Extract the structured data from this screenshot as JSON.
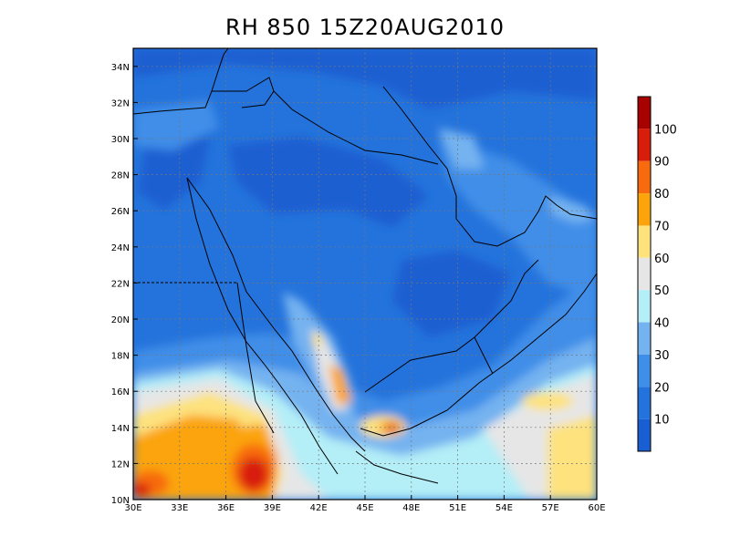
{
  "title": "RH 850 15Z20AUG2010",
  "map": {
    "lon_range": [
      30,
      60
    ],
    "lat_range": [
      10,
      35
    ],
    "lon_ticks": [
      "30E",
      "33E",
      "36E",
      "39E",
      "42E",
      "45E",
      "48E",
      "51E",
      "54E",
      "57E",
      "60E"
    ],
    "lat_ticks": [
      "10N",
      "12N",
      "14N",
      "16N",
      "18N",
      "20N",
      "22N",
      "24N",
      "26N",
      "28N",
      "30N",
      "32N",
      "34N"
    ],
    "gridlines": true
  },
  "colorbar": {
    "levels": [
      "10",
      "20",
      "30",
      "40",
      "50",
      "60",
      "70",
      "80",
      "90",
      "100"
    ],
    "colors": [
      "#1a5fd1",
      "#2473dc",
      "#3f8ee8",
      "#75b2f0",
      "#b4eef7",
      "#e6e6e6",
      "#fde27e",
      "#fba40c",
      "#f76a0d",
      "#d81d0b",
      "#a50200"
    ]
  }
}
